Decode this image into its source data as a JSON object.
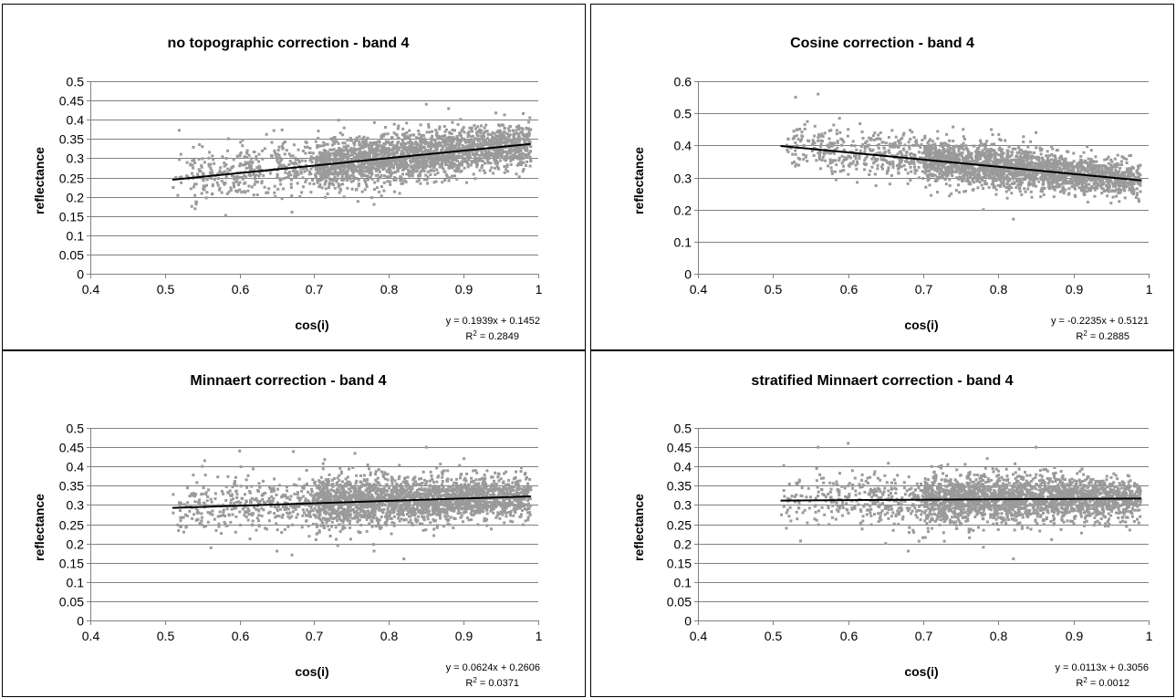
{
  "chart_data": [
    {
      "type": "scatter",
      "title": "no topographic correction - band 4",
      "xlabel": "cos(i)",
      "ylabel": "reflectance",
      "xlim": [
        0.4,
        1
      ],
      "ylim": [
        0,
        0.5
      ],
      "xticks": [
        "0.4",
        "0.5",
        "0.6",
        "0.7",
        "0.8",
        "0.9",
        "1"
      ],
      "yticks": [
        "0",
        "0.05",
        "0.1",
        "0.15",
        "0.2",
        "0.25",
        "0.3",
        "0.35",
        "0.4",
        "0.45",
        "0.5"
      ],
      "grid": "horizontal",
      "point_color": "#9a9a9a",
      "points_sample": [
        [
          0.52,
          0.25
        ],
        [
          0.55,
          0.33
        ],
        [
          0.6,
          0.28
        ],
        [
          0.63,
          0.24
        ],
        [
          0.67,
          0.16
        ],
        [
          0.7,
          0.3
        ],
        [
          0.75,
          0.32
        ],
        [
          0.78,
          0.18
        ],
        [
          0.82,
          0.36
        ],
        [
          0.85,
          0.44
        ],
        [
          0.9,
          0.38
        ],
        [
          0.95,
          0.34
        ],
        [
          0.98,
          0.35
        ]
      ],
      "trendline": {
        "slope": 0.1939,
        "intercept": 0.1452,
        "x_range": [
          0.51,
          0.99
        ]
      },
      "equation": "y = 0.1939x + 0.1452",
      "r2_label": "R",
      "r2_value": " = 0.2849"
    },
    {
      "type": "scatter",
      "title": "Cosine correction - band 4",
      "xlabel": "cos(i)",
      "ylabel": "reflectance",
      "xlim": [
        0.4,
        1
      ],
      "ylim": [
        0,
        0.6
      ],
      "xticks": [
        "0.4",
        "0.5",
        "0.6",
        "0.7",
        "0.8",
        "0.9",
        "1"
      ],
      "yticks": [
        "0",
        "0.1",
        "0.2",
        "0.3",
        "0.4",
        "0.5",
        "0.6"
      ],
      "grid": "horizontal",
      "point_color": "#9a9a9a",
      "points_sample": [
        [
          0.52,
          0.42
        ],
        [
          0.53,
          0.55
        ],
        [
          0.56,
          0.56
        ],
        [
          0.6,
          0.45
        ],
        [
          0.65,
          0.38
        ],
        [
          0.7,
          0.35
        ],
        [
          0.75,
          0.3
        ],
        [
          0.78,
          0.2
        ],
        [
          0.82,
          0.17
        ],
        [
          0.85,
          0.44
        ],
        [
          0.9,
          0.32
        ],
        [
          0.95,
          0.3
        ],
        [
          0.98,
          0.29
        ]
      ],
      "trendline": {
        "slope": -0.2235,
        "intercept": 0.5121,
        "x_range": [
          0.51,
          0.99
        ]
      },
      "equation": "y = -0.2235x + 0.5121",
      "r2_label": "R",
      "r2_value": " = 0.2885"
    },
    {
      "type": "scatter",
      "title": "Minnaert correction - band 4",
      "xlabel": "cos(i)",
      "ylabel": "reflectance",
      "xlim": [
        0.4,
        1
      ],
      "ylim": [
        0,
        0.5
      ],
      "xticks": [
        "0.4",
        "0.5",
        "0.6",
        "0.7",
        "0.8",
        "0.9",
        "1"
      ],
      "yticks": [
        "0",
        "0.05",
        "0.1",
        "0.15",
        "0.2",
        "0.25",
        "0.3",
        "0.35",
        "0.4",
        "0.45",
        "0.5"
      ],
      "grid": "horizontal",
      "point_color": "#9a9a9a",
      "points_sample": [
        [
          0.52,
          0.3
        ],
        [
          0.55,
          0.4
        ],
        [
          0.6,
          0.44
        ],
        [
          0.65,
          0.18
        ],
        [
          0.67,
          0.17
        ],
        [
          0.7,
          0.32
        ],
        [
          0.75,
          0.3
        ],
        [
          0.78,
          0.18
        ],
        [
          0.82,
          0.16
        ],
        [
          0.85,
          0.45
        ],
        [
          0.9,
          0.33
        ],
        [
          0.95,
          0.32
        ],
        [
          0.98,
          0.32
        ]
      ],
      "trendline": {
        "slope": 0.0624,
        "intercept": 0.2606,
        "x_range": [
          0.51,
          0.99
        ]
      },
      "equation": "y = 0.0624x + 0.2606",
      "r2_label": "R",
      "r2_value": " = 0.0371"
    },
    {
      "type": "scatter",
      "title": "stratified Minnaert correction - band 4",
      "xlabel": "cos(i)",
      "ylabel": "reflectance",
      "xlim": [
        0.4,
        1
      ],
      "ylim": [
        0,
        0.5
      ],
      "xticks": [
        "0.4",
        "0.5",
        "0.6",
        "0.7",
        "0.8",
        "0.9",
        "1"
      ],
      "yticks": [
        "0",
        "0.05",
        "0.1",
        "0.15",
        "0.2",
        "0.25",
        "0.3",
        "0.35",
        "0.4",
        "0.45",
        "0.5"
      ],
      "grid": "horizontal",
      "point_color": "#9a9a9a",
      "points_sample": [
        [
          0.52,
          0.31
        ],
        [
          0.56,
          0.45
        ],
        [
          0.6,
          0.46
        ],
        [
          0.65,
          0.2
        ],
        [
          0.68,
          0.18
        ],
        [
          0.7,
          0.32
        ],
        [
          0.75,
          0.3
        ],
        [
          0.78,
          0.19
        ],
        [
          0.82,
          0.16
        ],
        [
          0.85,
          0.45
        ],
        [
          0.9,
          0.33
        ],
        [
          0.95,
          0.32
        ],
        [
          0.98,
          0.32
        ]
      ],
      "trendline": {
        "slope": 0.0113,
        "intercept": 0.3056,
        "x_range": [
          0.51,
          0.99
        ]
      },
      "equation": "y = 0.0113x + 0.3056",
      "r2_label": "R",
      "r2_value": " = 0.0012"
    }
  ]
}
